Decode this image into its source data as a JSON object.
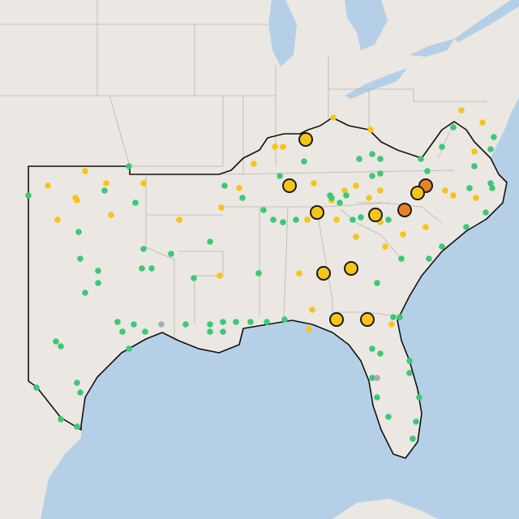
{
  "map": {
    "marker_groups": [
      {
        "color": "#e8812a",
        "outlined": true,
        "points": [
          [
            -78.5,
            36.2
          ],
          [
            -79.8,
            35.2
          ]
        ]
      },
      {
        "color": "#f5c518",
        "outlined": true,
        "points": [
          [
            -85.9,
            38.1
          ],
          [
            -86.9,
            36.2
          ],
          [
            -85.2,
            35.1
          ],
          [
            -81.6,
            35.0
          ],
          [
            -84.8,
            32.6
          ],
          [
            -83.1,
            32.8
          ],
          [
            -84.0,
            30.7
          ],
          [
            -82.1,
            30.7
          ],
          [
            -79.0,
            35.9
          ]
        ]
      },
      {
        "color": "#f5c518",
        "outlined": false,
        "points": [
          [
            -101.8,
            36.2
          ],
          [
            -100.1,
            35.7
          ],
          [
            -100.0,
            35.6
          ],
          [
            -101.2,
            34.8
          ],
          [
            -99.5,
            36.8
          ],
          [
            -98.2,
            36.3
          ],
          [
            -97.9,
            35.0
          ],
          [
            -95.9,
            36.3
          ],
          [
            -93.7,
            34.8
          ],
          [
            -91.1,
            35.3
          ],
          [
            -90.0,
            36.1
          ],
          [
            -89.1,
            37.1
          ],
          [
            -87.8,
            37.8
          ],
          [
            -87.3,
            37.8
          ],
          [
            -84.2,
            39.0
          ],
          [
            -81.9,
            38.5
          ],
          [
            -85.4,
            36.3
          ],
          [
            -83.5,
            36.0
          ],
          [
            -84.3,
            35.6
          ],
          [
            -82.8,
            36.2
          ],
          [
            -81.3,
            36.0
          ],
          [
            -82.0,
            35.7
          ],
          [
            -85.8,
            34.8
          ],
          [
            -84.0,
            34.8
          ],
          [
            -82.8,
            34.1
          ],
          [
            -81.0,
            33.7
          ],
          [
            -79.9,
            34.2
          ],
          [
            -77.3,
            36.0
          ],
          [
            -76.8,
            35.8
          ],
          [
            -75.5,
            37.6
          ],
          [
            -75.0,
            38.8
          ],
          [
            -76.3,
            39.3
          ],
          [
            -91.2,
            32.5
          ],
          [
            -86.3,
            32.6
          ],
          [
            -85.5,
            31.1
          ],
          [
            -85.7,
            30.3
          ],
          [
            -80.6,
            30.5
          ],
          [
            -75.4,
            35.7
          ],
          [
            -81.3,
            34.7
          ],
          [
            -78.5,
            34.5
          ]
        ]
      },
      {
        "color": "#3cc878",
        "outlined": false,
        "points": [
          [
            -103.0,
            35.8
          ],
          [
            -99.9,
            34.3
          ],
          [
            -99.8,
            33.2
          ],
          [
            -98.7,
            32.7
          ],
          [
            -99.5,
            31.8
          ],
          [
            -98.7,
            32.2
          ],
          [
            -96.8,
            37.0
          ],
          [
            -98.3,
            36.0
          ],
          [
            -96.4,
            35.5
          ],
          [
            -95.9,
            33.6
          ],
          [
            -96.0,
            32.8
          ],
          [
            -95.4,
            32.8
          ],
          [
            -94.2,
            33.4
          ],
          [
            -91.8,
            33.9
          ],
          [
            -92.8,
            32.4
          ],
          [
            -97.5,
            30.6
          ],
          [
            -97.2,
            30.2
          ],
          [
            -96.5,
            30.5
          ],
          [
            -95.8,
            30.2
          ],
          [
            -96.8,
            29.5
          ],
          [
            -101.3,
            29.8
          ],
          [
            -101.0,
            29.6
          ],
          [
            -100.0,
            28.1
          ],
          [
            -99.8,
            27.7
          ],
          [
            -102.5,
            27.9
          ],
          [
            -101.0,
            26.6
          ],
          [
            -100.0,
            26.3
          ],
          [
            -91.8,
            30.5
          ],
          [
            -91.0,
            30.6
          ],
          [
            -91.8,
            30.2
          ],
          [
            -91.0,
            30.2
          ],
          [
            -90.2,
            30.6
          ],
          [
            -89.3,
            30.6
          ],
          [
            -88.3,
            30.6
          ],
          [
            -87.2,
            30.7
          ],
          [
            -93.3,
            30.5
          ],
          [
            -90.9,
            36.2
          ],
          [
            -89.8,
            35.7
          ],
          [
            -87.5,
            36.6
          ],
          [
            -86.0,
            37.2
          ],
          [
            -88.8,
            32.6
          ],
          [
            -87.3,
            34.7
          ],
          [
            -86.5,
            34.8
          ],
          [
            -87.9,
            34.8
          ],
          [
            -88.5,
            35.2
          ],
          [
            -82.6,
            37.3
          ],
          [
            -81.8,
            37.5
          ],
          [
            -81.3,
            37.3
          ],
          [
            -81.8,
            36.6
          ],
          [
            -81.3,
            36.7
          ],
          [
            -78.8,
            37.3
          ],
          [
            -78.4,
            36.8
          ],
          [
            -76.8,
            38.6
          ],
          [
            -77.5,
            37.8
          ],
          [
            -74.3,
            38.2
          ],
          [
            -74.5,
            37.7
          ],
          [
            -75.5,
            37.0
          ],
          [
            -74.5,
            36.3
          ],
          [
            -74.4,
            36.1
          ],
          [
            -75.8,
            36.1
          ],
          [
            -74.8,
            35.1
          ],
          [
            -76.0,
            34.5
          ],
          [
            -77.5,
            33.7
          ],
          [
            -78.3,
            33.2
          ],
          [
            -80.0,
            33.2
          ],
          [
            -80.8,
            34.8
          ],
          [
            -83.0,
            34.8
          ],
          [
            -82.5,
            34.9
          ],
          [
            -83.8,
            35.5
          ],
          [
            -84.4,
            35.8
          ],
          [
            -83.4,
            35.8
          ],
          [
            -81.5,
            32.2
          ],
          [
            -80.5,
            30.8
          ],
          [
            -80.1,
            30.8
          ],
          [
            -81.8,
            29.5
          ],
          [
            -81.3,
            29.3
          ],
          [
            -81.8,
            28.3
          ],
          [
            -81.5,
            27.5
          ],
          [
            -80.8,
            26.7
          ],
          [
            -79.5,
            29.0
          ],
          [
            -79.5,
            28.5
          ],
          [
            -78.9,
            27.5
          ],
          [
            -79.1,
            26.5
          ],
          [
            -79.3,
            25.8
          ],
          [
            -84.3,
            35.7
          ]
        ]
      },
      {
        "color": "#a9aaad",
        "outlined": false,
        "points": [
          [
            -94.8,
            30.5
          ],
          [
            -81.5,
            28.3
          ]
        ]
      }
    ]
  }
}
